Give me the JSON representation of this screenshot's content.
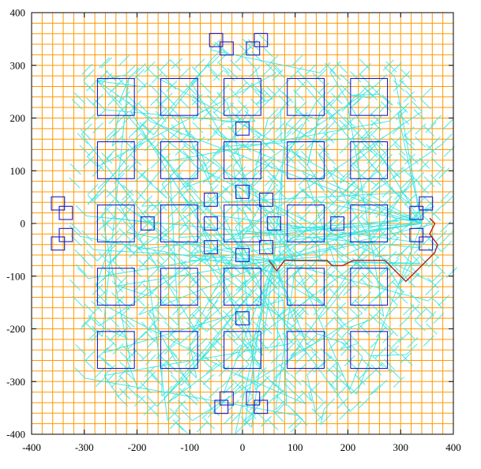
{
  "chart_data": {
    "type": "line",
    "title": "",
    "xlabel": "",
    "ylabel": "",
    "xlim": [
      -400,
      400
    ],
    "ylim": [
      -400,
      400
    ],
    "x_ticks": [
      -400,
      -300,
      -200,
      -100,
      0,
      100,
      200,
      300,
      400
    ],
    "y_ticks": [
      -400,
      -300,
      -200,
      -100,
      0,
      100,
      200,
      300,
      400
    ],
    "grid": true,
    "grid_step": 20,
    "legend": "none",
    "colors": {
      "grid": "#ff9900",
      "squares": "#1a1acc",
      "paths": "#33e6e6",
      "route": "#b22222",
      "frame": "#000000"
    },
    "series": [
      {
        "kind": "big-squares",
        "size": 70,
        "centers": [
          [
            -240,
            240
          ],
          [
            -120,
            240
          ],
          [
            0,
            240
          ],
          [
            120,
            240
          ],
          [
            240,
            240
          ],
          [
            -240,
            120
          ],
          [
            -120,
            120
          ],
          [
            0,
            120
          ],
          [
            120,
            120
          ],
          [
            240,
            120
          ],
          [
            -240,
            0
          ],
          [
            -120,
            0
          ],
          [
            0,
            0
          ],
          [
            120,
            0
          ],
          [
            240,
            0
          ],
          [
            -240,
            -120
          ],
          [
            -120,
            -120
          ],
          [
            0,
            -120
          ],
          [
            120,
            -120
          ],
          [
            240,
            -120
          ],
          [
            -240,
            -240
          ],
          [
            -120,
            -240
          ],
          [
            0,
            -240
          ],
          [
            120,
            -240
          ],
          [
            240,
            -240
          ]
        ]
      },
      {
        "kind": "small-squares",
        "size": 25,
        "centers": [
          [
            -50,
            348
          ],
          [
            -30,
            332
          ],
          [
            20,
            332
          ],
          [
            35,
            348
          ],
          [
            0,
            180
          ],
          [
            0,
            60
          ],
          [
            0,
            -60
          ],
          [
            0,
            -180
          ],
          [
            -60,
            45
          ],
          [
            45,
            45
          ],
          [
            -60,
            -45
          ],
          [
            45,
            -45
          ],
          [
            -180,
            0
          ],
          [
            -60,
            0
          ],
          [
            60,
            0
          ],
          [
            180,
            0
          ],
          [
            -350,
            38
          ],
          [
            -335,
            20
          ],
          [
            -335,
            -22
          ],
          [
            -350,
            -38
          ],
          [
            330,
            20
          ],
          [
            348,
            38
          ],
          [
            330,
            -22
          ],
          [
            348,
            -38
          ],
          [
            -40,
            -348
          ],
          [
            -30,
            -332
          ],
          [
            20,
            -332
          ],
          [
            35,
            -348
          ]
        ]
      },
      {
        "kind": "route",
        "points": [
          [
            50,
            -70
          ],
          [
            65,
            -90
          ],
          [
            80,
            -70
          ],
          [
            160,
            -70
          ],
          [
            170,
            -80
          ],
          [
            190,
            -80
          ],
          [
            210,
            -70
          ],
          [
            270,
            -70
          ],
          [
            310,
            -110
          ],
          [
            365,
            -55
          ],
          [
            370,
            -40
          ],
          [
            355,
            -20
          ],
          [
            365,
            0
          ],
          [
            355,
            10
          ]
        ]
      }
    ]
  }
}
